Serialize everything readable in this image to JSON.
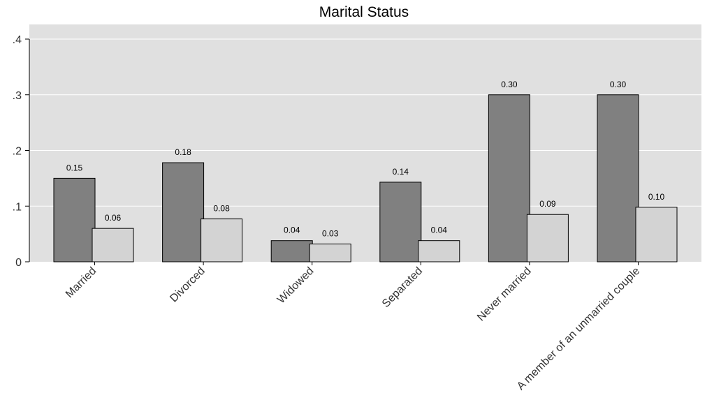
{
  "chart_data": {
    "type": "bar",
    "title": "Marital Status",
    "xlabel": "",
    "ylabel": "",
    "ylim": [
      0,
      0.4
    ],
    "yticks": [
      {
        "value": 0,
        "label": "0"
      },
      {
        "value": 0.1,
        "label": ".1"
      },
      {
        "value": 0.2,
        "label": ".2"
      },
      {
        "value": 0.3,
        "label": ".3"
      },
      {
        "value": 0.4,
        "label": ".4"
      }
    ],
    "grid": true,
    "legend": "none",
    "categories": [
      "Married",
      "Divorced",
      "Widowed",
      "Separated",
      "Never married",
      "A member of an unmarried couple"
    ],
    "series": [
      {
        "color": "#808080",
        "values": [
          0.15,
          0.178,
          0.038,
          0.143,
          0.3,
          0.3
        ],
        "labels": [
          "0.15",
          "0.18",
          "0.04",
          "0.14",
          "0.30",
          "0.30"
        ]
      },
      {
        "color": "#d3d3d3",
        "values": [
          0.06,
          0.077,
          0.032,
          0.038,
          0.085,
          0.098
        ],
        "labels": [
          "0.06",
          "0.08",
          "0.03",
          "0.04",
          "0.09",
          "0.10"
        ]
      }
    ],
    "plot_background": "#e0e0e0"
  }
}
